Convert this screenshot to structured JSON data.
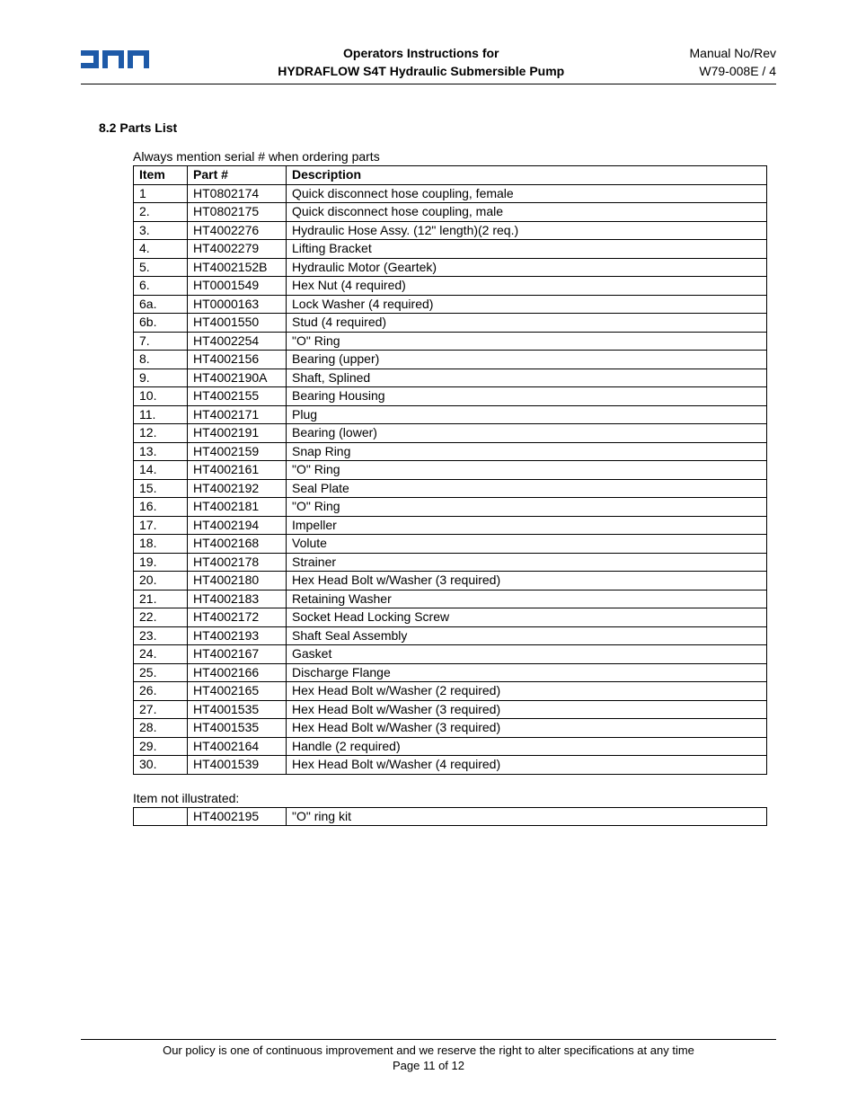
{
  "header": {
    "title_line1": "Operators Instructions for",
    "title_line2": "HYDRAFLOW S4T Hydraulic Submersible Pump",
    "manual_no_label": "Manual No/Rev",
    "manual_no_value": "W79-008E / 4"
  },
  "section": {
    "number_title": "8.2  Parts List",
    "note": "Always mention serial # when ordering parts"
  },
  "table": {
    "headers": {
      "item": "Item",
      "part": "Part #",
      "desc": "Description"
    },
    "rows": [
      {
        "item": "1",
        "part": "HT0802174",
        "desc": "Quick disconnect hose coupling, female",
        "center": true
      },
      {
        "item": "2.",
        "part": "HT0802175",
        "desc": "Quick disconnect hose coupling, male"
      },
      {
        "item": "3.",
        "part": "HT4002276",
        "desc": "Hydraulic Hose Assy. (12\" length)(2 req.)"
      },
      {
        "item": "4.",
        "part": "HT4002279",
        "desc": "Lifting Bracket"
      },
      {
        "item": "5.",
        "part": "HT4002152B",
        "desc": "Hydraulic Motor (Geartek)"
      },
      {
        "item": "6.",
        "part": "HT0001549",
        "desc": "Hex Nut  (4 required)"
      },
      {
        "item": "6a.",
        "part": "HT0000163",
        "desc": "Lock Washer (4 required)"
      },
      {
        "item": "6b.",
        "part": "HT4001550",
        "desc": "Stud  (4 required)"
      },
      {
        "item": "7.",
        "part": "HT4002254",
        "desc": "\"O\" Ring"
      },
      {
        "item": "8.",
        "part": "HT4002156",
        "desc": "Bearing (upper)"
      },
      {
        "item": "9.",
        "part": "HT4002190A",
        "desc": "Shaft, Splined"
      },
      {
        "item": "10.",
        "part": "HT4002155",
        "desc": "Bearing Housing"
      },
      {
        "item": "11.",
        "part": "HT4002171",
        "desc": "Plug"
      },
      {
        "item": "12.",
        "part": "HT4002191",
        "desc": "Bearing (lower)"
      },
      {
        "item": "13.",
        "part": "HT4002159",
        "desc": "Snap Ring"
      },
      {
        "item": "14.",
        "part": "HT4002161",
        "desc": "\"O\" Ring"
      },
      {
        "item": "15.",
        "part": "HT4002192",
        "desc": "Seal Plate"
      },
      {
        "item": "16.",
        "part": "HT4002181",
        "desc": "\"O\" Ring"
      },
      {
        "item": "17.",
        "part": "HT4002194",
        "desc": "Impeller"
      },
      {
        "item": "18.",
        "part": "HT4002168",
        "desc": "Volute"
      },
      {
        "item": "19.",
        "part": "HT4002178",
        "desc": "Strainer"
      },
      {
        "item": "20.",
        "part": "HT4002180",
        "desc": "Hex Head Bolt w/Washer (3 required)"
      },
      {
        "item": "21.",
        "part": "HT4002183",
        "desc": "Retaining Washer"
      },
      {
        "item": "22.",
        "part": "HT4002172",
        "desc": "Socket Head Locking Screw"
      },
      {
        "item": "23.",
        "part": "HT4002193",
        "desc": "Shaft Seal Assembly"
      },
      {
        "item": "24.",
        "part": "HT4002167",
        "desc": "Gasket"
      },
      {
        "item": "25.",
        "part": "HT4002166",
        "desc": "Discharge Flange"
      },
      {
        "item": "26.",
        "part": "HT4002165",
        "desc": "Hex Head Bolt w/Washer (2 required)"
      },
      {
        "item": "27.",
        "part": "HT4001535",
        "desc": "Hex Head Bolt w/Washer (3 required)"
      },
      {
        "item": "28.",
        "part": "HT4001535",
        "desc": "Hex Head Bolt w/Washer (3 required)"
      },
      {
        "item": "29.",
        "part": "HT4002164",
        "desc": "Handle (2 required)"
      },
      {
        "item": "30.",
        "part": "HT4001539",
        "desc": "Hex Head Bolt w/Washer (4 required)"
      }
    ]
  },
  "not_illustrated": {
    "label": "Item not illustrated:",
    "row": {
      "part": "HT4002195",
      "desc": "\"O\" ring kit"
    }
  },
  "footer": {
    "policy": "Our policy is one of continuous improvement and we reserve the right to alter specifications at any time",
    "page": "Page 11 of 12"
  },
  "colors": {
    "logo_blue": "#1e5aa8",
    "text": "#000000",
    "border": "#000000",
    "background": "#ffffff"
  }
}
